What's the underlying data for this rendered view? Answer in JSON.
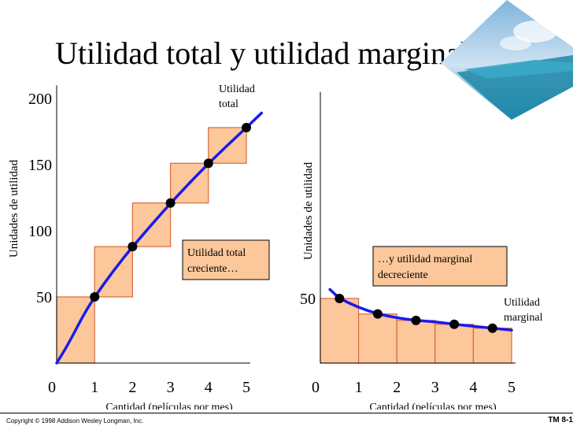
{
  "title": "Utilidad total y utilidad marginal",
  "footer": {
    "copyright": "Copyright © 1998 Addison Wesley Longman, Inc.",
    "slide_id": "TM 8-1"
  },
  "colors": {
    "curve": "#1a1aee",
    "bar_fill": "#fcc79a",
    "bar_edge": "#d96a3c",
    "axis": "#000000",
    "dot": "#000000"
  },
  "chart_data": [
    {
      "type": "bar",
      "title": "",
      "xlabel": "Cantidad (películas por mes)",
      "ylabel": "Unidades de utilidad",
      "x_ticks": [
        "0",
        "1",
        "2",
        "3",
        "4",
        "5"
      ],
      "y_ticks": [
        50,
        100,
        150,
        200
      ],
      "y_tick_labels": [
        "50",
        "100",
        "150",
        "200"
      ],
      "xlim": [
        0,
        5
      ],
      "ylim": [
        0,
        210
      ],
      "bars": [
        {
          "x_start": 0,
          "x_end": 1,
          "bottom": 0,
          "top": 50
        },
        {
          "x_start": 1,
          "x_end": 2,
          "bottom": 50,
          "top": 88
        },
        {
          "x_start": 2,
          "x_end": 3,
          "bottom": 88,
          "top": 121
        },
        {
          "x_start": 3,
          "x_end": 4,
          "bottom": 121,
          "top": 151
        },
        {
          "x_start": 4,
          "x_end": 5,
          "bottom": 151,
          "top": 178
        }
      ],
      "points": [
        {
          "x": 1,
          "y": 50
        },
        {
          "x": 2,
          "y": 88
        },
        {
          "x": 3,
          "y": 121
        },
        {
          "x": 4,
          "y": 151
        },
        {
          "x": 5,
          "y": 178
        }
      ],
      "curve_label": "Utilidad total",
      "annotation": "Utilidad total creciente…",
      "grid": false
    },
    {
      "type": "bar",
      "title": "",
      "xlabel": "Cantidad (películas por mes)",
      "ylabel": "Unidades de utilidad",
      "x_ticks": [
        "0",
        "1",
        "2",
        "3",
        "4",
        "5"
      ],
      "y_ticks": [
        50
      ],
      "y_tick_labels": [
        "50"
      ],
      "xlim": [
        0,
        5
      ],
      "ylim": [
        0,
        210
      ],
      "bars": [
        {
          "x_start": 0,
          "x_end": 1,
          "bottom": 0,
          "top": 50
        },
        {
          "x_start": 1,
          "x_end": 2,
          "bottom": 0,
          "top": 38
        },
        {
          "x_start": 2,
          "x_end": 3,
          "bottom": 0,
          "top": 33
        },
        {
          "x_start": 3,
          "x_end": 4,
          "bottom": 0,
          "top": 30
        },
        {
          "x_start": 4,
          "x_end": 5,
          "bottom": 0,
          "top": 27
        }
      ],
      "points": [
        {
          "x": 0.5,
          "y": 50
        },
        {
          "x": 1.5,
          "y": 38
        },
        {
          "x": 2.5,
          "y": 33
        },
        {
          "x": 3.5,
          "y": 30
        },
        {
          "x": 4.5,
          "y": 27
        }
      ],
      "curve_label": "Utilidad marginal",
      "annotation": "…y utilidad marginal decreciente",
      "grid": false
    }
  ]
}
